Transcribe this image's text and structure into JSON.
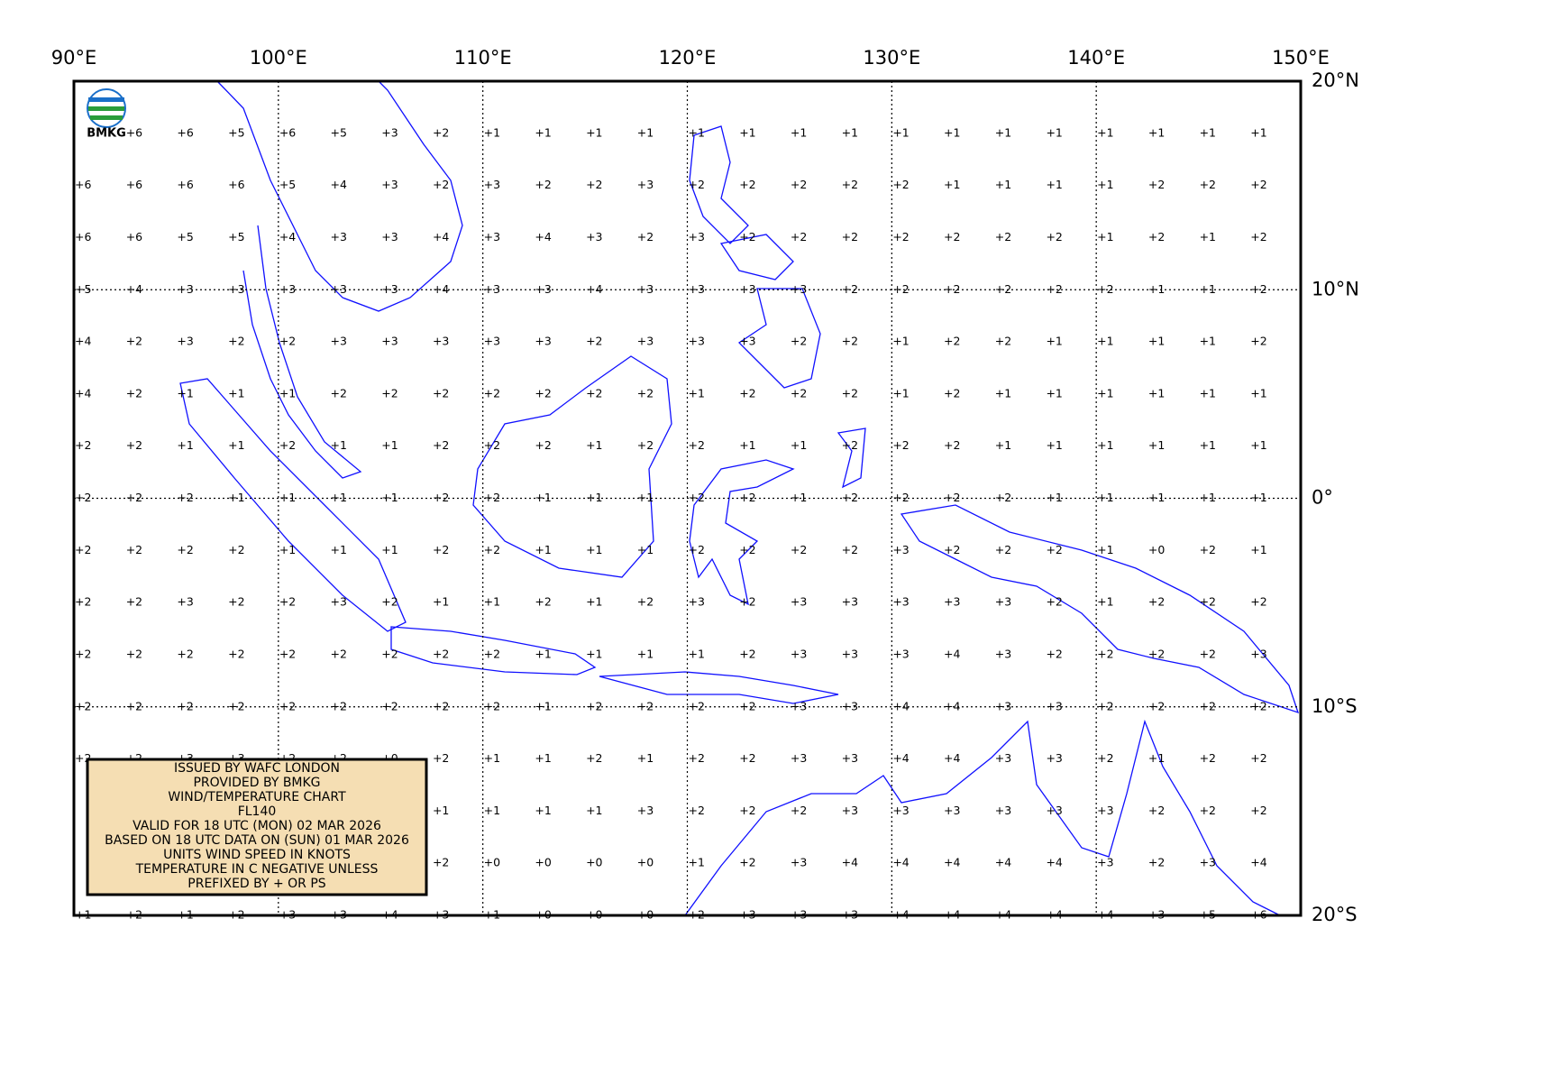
{
  "chart_data": {
    "type": "wind-temperature-map",
    "logo_text": "BMKG",
    "xlim": [
      90,
      150
    ],
    "ylim": [
      -20,
      20
    ],
    "xticks": [
      {
        "value": 90,
        "label": "90°E"
      },
      {
        "value": 100,
        "label": "100°E"
      },
      {
        "value": 110,
        "label": "110°E"
      },
      {
        "value": 120,
        "label": "120°E"
      },
      {
        "value": 130,
        "label": "130°E"
      },
      {
        "value": 140,
        "label": "140°E"
      },
      {
        "value": 150,
        "label": "150°E"
      }
    ],
    "yticks": [
      {
        "value": 20,
        "label": "20°N"
      },
      {
        "value": 10,
        "label": "10°N"
      },
      {
        "value": 0,
        "label": "0°"
      },
      {
        "value": -10,
        "label": "10°S"
      },
      {
        "value": -20,
        "label": "20°S"
      }
    ],
    "grid": true,
    "x": [
      90,
      92.5,
      95,
      97.5,
      100,
      102.5,
      105,
      107.5,
      110,
      112.5,
      115,
      117.5,
      120,
      122.5,
      125,
      127.5,
      130,
      132.5,
      135,
      137.5,
      140,
      142.5,
      145,
      147.5
    ],
    "y": [
      17.5,
      15,
      12.5,
      10,
      7.5,
      5,
      2.5,
      0,
      -2.5,
      -5,
      -7.5,
      -10,
      -12.5,
      -15,
      -17.5,
      -20
    ],
    "values": [
      [
        null,
        6,
        6,
        5,
        6,
        5,
        3,
        2,
        1,
        1,
        1,
        1,
        1,
        1,
        1,
        1,
        1,
        1,
        1,
        1,
        1,
        1,
        1,
        1
      ],
      [
        6,
        6,
        6,
        6,
        5,
        4,
        3,
        2,
        3,
        2,
        2,
        3,
        2,
        2,
        2,
        2,
        2,
        1,
        1,
        1,
        1,
        2,
        2,
        2
      ],
      [
        6,
        6,
        5,
        5,
        4,
        3,
        3,
        4,
        3,
        4,
        3,
        2,
        3,
        2,
        2,
        2,
        2,
        2,
        2,
        2,
        1,
        2,
        1,
        2
      ],
      [
        5,
        4,
        3,
        3,
        3,
        3,
        3,
        4,
        3,
        3,
        4,
        3,
        3,
        3,
        3,
        2,
        2,
        2,
        2,
        2,
        2,
        1,
        1,
        2
      ],
      [
        4,
        2,
        3,
        2,
        2,
        3,
        3,
        3,
        3,
        3,
        2,
        3,
        3,
        3,
        2,
        2,
        1,
        2,
        2,
        1,
        1,
        1,
        1,
        2
      ],
      [
        4,
        2,
        1,
        1,
        1,
        2,
        2,
        2,
        2,
        2,
        2,
        2,
        1,
        2,
        2,
        2,
        1,
        2,
        1,
        1,
        1,
        1,
        1,
        1
      ],
      [
        2,
        2,
        1,
        1,
        2,
        1,
        1,
        2,
        2,
        2,
        1,
        2,
        2,
        1,
        1,
        2,
        2,
        2,
        1,
        1,
        1,
        1,
        1,
        1
      ],
      [
        2,
        2,
        2,
        1,
        1,
        1,
        1,
        2,
        2,
        1,
        1,
        1,
        2,
        2,
        1,
        2,
        2,
        2,
        2,
        1,
        1,
        1,
        1,
        1
      ],
      [
        2,
        2,
        2,
        2,
        1,
        1,
        1,
        2,
        2,
        1,
        1,
        1,
        2,
        2,
        2,
        2,
        3,
        2,
        2,
        2,
        1,
        0,
        2,
        1
      ],
      [
        2,
        2,
        3,
        2,
        2,
        3,
        2,
        1,
        1,
        2,
        1,
        2,
        3,
        2,
        3,
        3,
        3,
        3,
        3,
        2,
        1,
        2,
        2,
        2
      ],
      [
        2,
        2,
        2,
        2,
        2,
        2,
        2,
        2,
        2,
        1,
        1,
        1,
        1,
        2,
        3,
        3,
        3,
        4,
        3,
        2,
        2,
        2,
        2,
        3
      ],
      [
        2,
        2,
        2,
        2,
        2,
        2,
        2,
        2,
        2,
        1,
        2,
        2,
        2,
        2,
        3,
        3,
        4,
        4,
        3,
        3,
        2,
        2,
        2,
        2
      ],
      [
        2,
        2,
        3,
        3,
        2,
        2,
        0,
        2,
        1,
        1,
        2,
        1,
        2,
        2,
        3,
        3,
        4,
        4,
        3,
        3,
        2,
        1,
        2,
        2
      ],
      [
        null,
        null,
        null,
        null,
        null,
        null,
        null,
        1,
        1,
        1,
        1,
        3,
        2,
        2,
        2,
        3,
        3,
        3,
        3,
        3,
        3,
        2,
        2,
        2
      ],
      [
        null,
        null,
        null,
        null,
        null,
        null,
        null,
        2,
        0,
        0,
        0,
        0,
        1,
        2,
        3,
        4,
        4,
        4,
        4,
        4,
        3,
        2,
        3,
        4
      ],
      [
        1,
        2,
        1,
        2,
        3,
        3,
        4,
        3,
        1,
        0,
        0,
        0,
        2,
        3,
        3,
        3,
        4,
        4,
        4,
        4,
        4,
        3,
        5,
        6
      ]
    ],
    "value_labels": [
      [
        null,
        "+6",
        "+6",
        "+5",
        "+6",
        "+5",
        "+3",
        "+2",
        "+1",
        "+1",
        "+1",
        "+1",
        "+1",
        "+1",
        "+1",
        "+1",
        "+1",
        "+1",
        "+1",
        "+1",
        "+1",
        "+1",
        "+1",
        "+1"
      ],
      [
        "+6",
        "+6",
        "+6",
        "+6",
        "+5",
        "+4",
        "+3",
        "+2",
        "+3",
        "+2",
        "+2",
        "+3",
        "+2",
        "+2",
        "+2",
        "+2",
        "+2",
        "+1",
        "+1",
        "+1",
        "+1",
        "+2",
        "+2",
        "+2"
      ],
      [
        "+6",
        "+6",
        "+5",
        "+5",
        "+4",
        "+3",
        "+3",
        "+4",
        "+3",
        "+4",
        "+3",
        "+2",
        "+3",
        "+2",
        "+2",
        "+2",
        "+2",
        "+2",
        "+2",
        "+2",
        "+1",
        "+2",
        "+1",
        "+2"
      ],
      [
        "+5",
        "+4",
        "+3",
        "+3",
        "+3",
        "+3",
        "+3",
        "+4",
        "+3",
        "+3",
        "+4",
        "+3",
        "+3",
        "+3",
        "+3",
        "+2",
        "+2",
        "+2",
        "+2",
        "+2",
        "+2",
        "+1",
        "+1",
        "+2"
      ],
      [
        "+4",
        "+2",
        "+3",
        "+2",
        "+2",
        "+3",
        "+3",
        "+3",
        "+3",
        "+3",
        "+2",
        "+3",
        "+3",
        "+3",
        "+2",
        "+2",
        "+1",
        "+2",
        "+2",
        "+1",
        "+1",
        "+1",
        "+1",
        "+2"
      ],
      [
        "+4",
        "+2",
        "+1",
        "+1",
        "+1",
        "+2",
        "+2",
        "+2",
        "+2",
        "+2",
        "+2",
        "+2",
        "+1",
        "+2",
        "+2",
        "+2",
        "+1",
        "+2",
        "+1",
        "+1",
        "+1",
        "+1",
        "+1",
        "+1"
      ],
      [
        "+2",
        "+2",
        "+1",
        "+1",
        "+2",
        "+1",
        "+1",
        "+2",
        "+2",
        "+2",
        "+1",
        "+2",
        "+2",
        "+1",
        "+1",
        "+2",
        "+2",
        "+2",
        "+1",
        "+1",
        "+1",
        "+1",
        "+1",
        "+1"
      ],
      [
        "+2",
        "+2",
        "+2",
        "+1",
        "+1",
        "+1",
        "+1",
        "+2",
        "+2",
        "+1",
        "+1",
        "+1",
        "+2",
        "+2",
        "+1",
        "+2",
        "+2",
        "+2",
        "+2",
        "+1",
        "+1",
        "+1",
        "+1",
        "+1"
      ],
      [
        "+2",
        "+2",
        "+2",
        "+2",
        "+1",
        "+1",
        "+1",
        "+2",
        "+2",
        "+1",
        "+1",
        "+1",
        "+2",
        "+2",
        "+2",
        "+2",
        "+3",
        "+2",
        "+2",
        "+2",
        "+1",
        "+0",
        "+2",
        "+1"
      ],
      [
        "+2",
        "+2",
        "+3",
        "+2",
        "+2",
        "+3",
        "+2",
        "+1",
        "+1",
        "+2",
        "+1",
        "+2",
        "+3",
        "+2",
        "+3",
        "+3",
        "+3",
        "+3",
        "+3",
        "+2",
        "+1",
        "+2",
        "+2",
        "+2"
      ],
      [
        "+2",
        "+2",
        "+2",
        "+2",
        "+2",
        "+2",
        "+2",
        "+2",
        "+2",
        "+1",
        "+1",
        "+1",
        "+1",
        "+2",
        "+3",
        "+3",
        "+3",
        "+4",
        "+3",
        "+2",
        "+2",
        "+2",
        "+2",
        "+3"
      ],
      [
        "+2",
        "+2",
        "+2",
        "+2",
        "+2",
        "+2",
        "+2",
        "+2",
        "+2",
        "+1",
        "+2",
        "+2",
        "+2",
        "+2",
        "+3",
        "+3",
        "+4",
        "+4",
        "+3",
        "+3",
        "+2",
        "+2",
        "+2",
        "+2"
      ],
      [
        "+2",
        "+2",
        "+3",
        "+3",
        "+2",
        "+2",
        "+0",
        "+2",
        "+1",
        "+1",
        "+2",
        "+1",
        "+2",
        "+2",
        "+3",
        "+3",
        "+4",
        "+4",
        "+3",
        "+3",
        "+2",
        "+1",
        "+2",
        "+2"
      ],
      [
        null,
        null,
        null,
        null,
        null,
        null,
        null,
        "+1",
        "+1",
        "+1",
        "+1",
        "+3",
        "+2",
        "+2",
        "+2",
        "+3",
        "+3",
        "+3",
        "+3",
        "+3",
        "+3",
        "+2",
        "+2",
        "+2"
      ],
      [
        null,
        null,
        null,
        null,
        null,
        null,
        null,
        "+2",
        "+0",
        "+0",
        "+0",
        "+0",
        "+1",
        "+2",
        "+3",
        "+4",
        "+4",
        "+4",
        "+4",
        "+4",
        "+3",
        "+2",
        "+3",
        "+4"
      ],
      [
        "+1",
        "+2",
        "+1",
        "+2",
        "+3",
        "+3",
        "+4",
        "+3",
        "+1",
        "+0",
        "+0",
        "+0",
        "+2",
        "+3",
        "+3",
        "+3",
        "+4",
        "+4",
        "+4",
        "+4",
        "+4",
        "+3",
        "+5",
        "+6"
      ]
    ],
    "notes": [
      "ISSUED BY WAFC LONDON",
      "PROVIDED BY BMKG",
      "WIND/TEMPERATURE CHART",
      "FL140",
      "VALID FOR 18 UTC (MON) 02 MAR 2026",
      "BASED ON 18 UTC DATA ON (SUN) 01 MAR 2026",
      "UNITS WIND SPEED IN KNOTS",
      "TEMPERATURE IN C NEGATIVE UNLESS",
      "PREFIXED BY + OR PS"
    ]
  }
}
